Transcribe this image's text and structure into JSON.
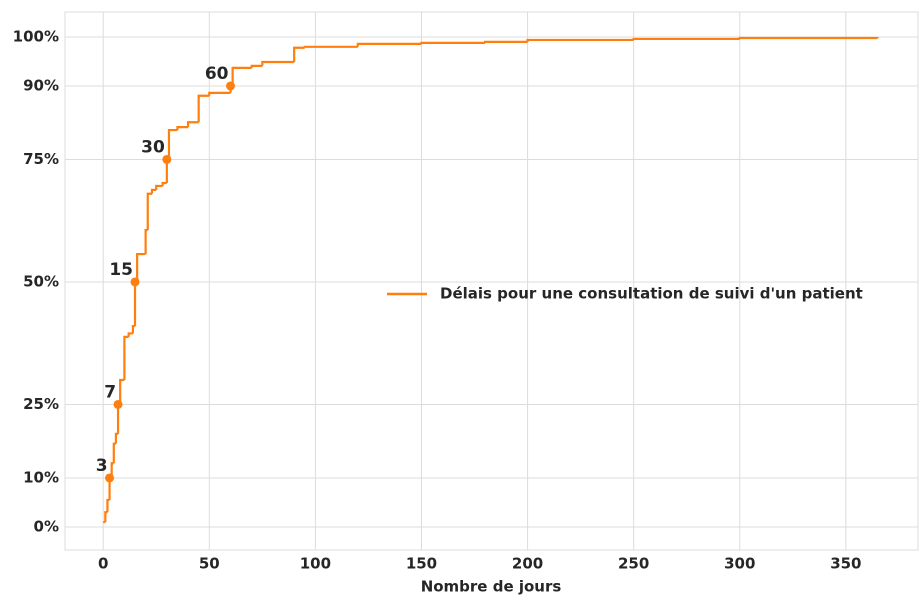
{
  "chart_data": {
    "type": "line",
    "step": "post",
    "xlabel": "Nombre de jours",
    "xlim": [
      -18,
      384
    ],
    "ylim": [
      -4.7,
      105.1
    ],
    "xticks": [
      0,
      50,
      100,
      150,
      200,
      250,
      300,
      350
    ],
    "yticks": [
      {
        "value": 0,
        "label": "0%"
      },
      {
        "value": 10,
        "label": "10%"
      },
      {
        "value": 25,
        "label": "25%"
      },
      {
        "value": 50,
        "label": "50%"
      },
      {
        "value": 75,
        "label": "75%"
      },
      {
        "value": 90,
        "label": "90%"
      },
      {
        "value": 100,
        "label": "100%"
      }
    ],
    "grid": true,
    "legend": "center right",
    "series": [
      {
        "name": "Délais pour une consultation de suivi d'un patient",
        "color": "#ff7f0e",
        "x": [
          0,
          1,
          2,
          3,
          4,
          5,
          6,
          7,
          8,
          10,
          12,
          14,
          15,
          16,
          20,
          21,
          23,
          25,
          28,
          30,
          31,
          35,
          40,
          45,
          50,
          60,
          61,
          70,
          75,
          90,
          95,
          120,
          150,
          180,
          200,
          250,
          300,
          365
        ],
        "values": [
          1,
          3,
          5.5,
          10,
          13,
          17,
          19,
          25,
          30,
          38.8,
          39.5,
          41,
          50,
          55.7,
          60.6,
          68,
          68.8,
          69.6,
          70.2,
          75.3,
          81,
          81.6,
          82.6,
          88,
          88.6,
          90,
          93.7,
          94.1,
          94.9,
          97.8,
          98,
          98.6,
          98.8,
          99,
          99.4,
          99.6,
          99.8,
          100
        ]
      }
    ],
    "markers": {
      "color": "#ff7f0e",
      "x": [
        3,
        7,
        15,
        30,
        60
      ],
      "values": [
        10,
        25,
        50,
        75,
        90
      ]
    }
  }
}
